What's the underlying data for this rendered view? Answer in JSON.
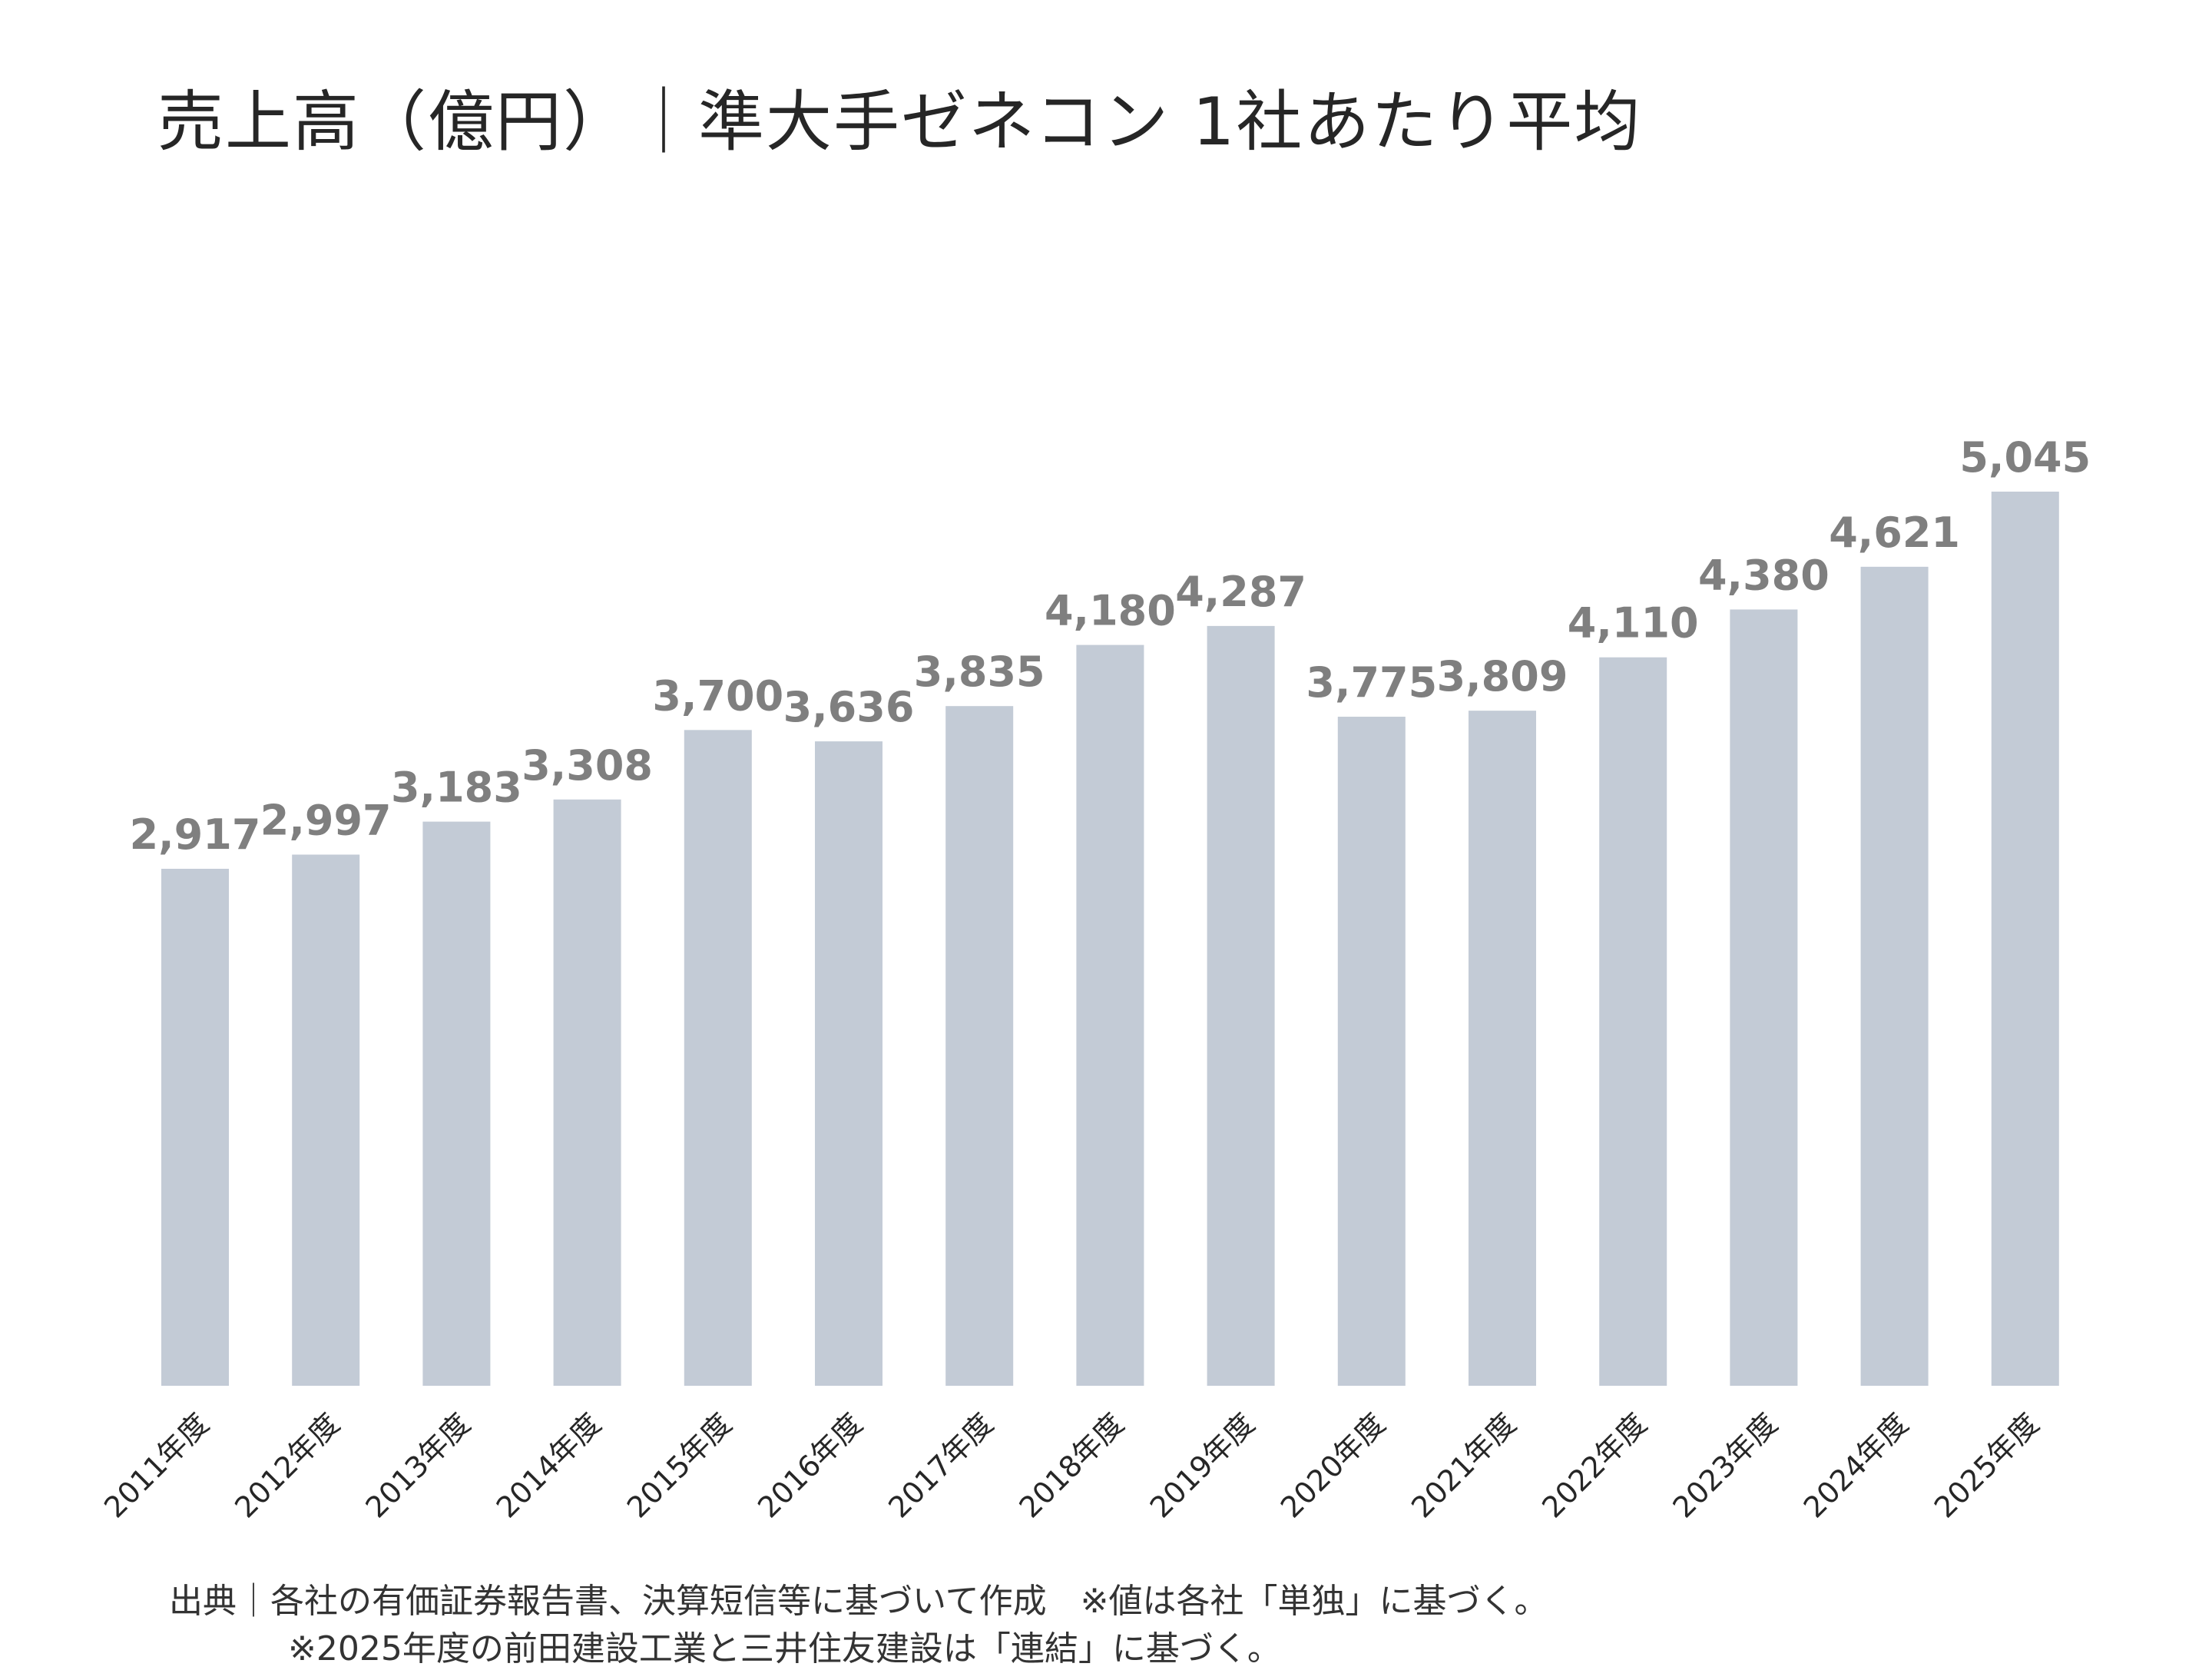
{
  "title": "売上高（億円）｜準大手ゼネコン 1社あたり平均",
  "notes": [
    "出典｜各社の有価証券報告書、決算短信等に基づいて作成　※値は各社「単独」に基づく。",
    "※2025年度の前田建設工業と三井住友建設は「連結」に基づく。"
  ],
  "colors": {
    "bar": "#c3cbd6",
    "label": "#7f7f7f",
    "axis_text": "#262626"
  },
  "chart_data": {
    "type": "bar",
    "title": "売上高（億円）｜準大手ゼネコン 1社あたり平均",
    "categories": [
      "2011年度",
      "2012年度",
      "2013年度",
      "2014年度",
      "2015年度",
      "2016年度",
      "2017年度",
      "2018年度",
      "2019年度",
      "2020年度",
      "2021年度",
      "2022年度",
      "2023年度",
      "2024年度",
      "2025年度"
    ],
    "values": [
      2917,
      2997,
      3183,
      3308,
      3700,
      3636,
      3835,
      4180,
      4287,
      3775,
      3809,
      4110,
      4380,
      4621,
      5045
    ],
    "value_labels": [
      "2,917",
      "2,997",
      "3,183",
      "3,308",
      "3,700",
      "3,636",
      "3,835",
      "4,180",
      "4,287",
      "3,775",
      "3,809",
      "4,110",
      "4,380",
      "4,621",
      "5,045"
    ],
    "xlabel": "",
    "ylabel": "",
    "ylim": [
      0,
      5045
    ],
    "grid": false,
    "legend": "none"
  }
}
